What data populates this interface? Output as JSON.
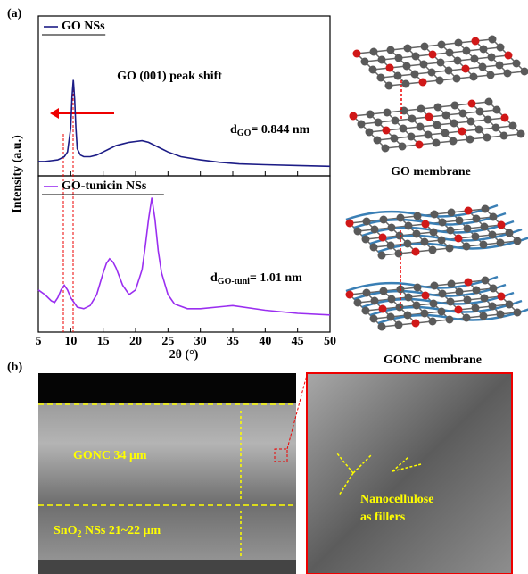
{
  "chart_data": [
    {
      "type": "line",
      "series": [
        {
          "name": "GO NSs",
          "color": "#1c1c86",
          "values": [
            9,
            9,
            9.5,
            10,
            12,
            15,
            30,
            50,
            60,
            48,
            30,
            17,
            13,
            12,
            12,
            13,
            15,
            17,
            19,
            20,
            21,
            21.5,
            22,
            21,
            19,
            17,
            15,
            12,
            10,
            8.5,
            7.5,
            7,
            6.5,
            6
          ]
        }
      ],
      "x": [
        5,
        6,
        7,
        8,
        9,
        9.5,
        10,
        10.2,
        10.4,
        10.6,
        10.8,
        11,
        11.5,
        12,
        13,
        14,
        15,
        16,
        17,
        18,
        19,
        20,
        21,
        22,
        23,
        24,
        25,
        27,
        30,
        33,
        36,
        40,
        45,
        50
      ],
      "xlim": [
        5,
        50
      ],
      "ylim": [
        0,
        100
      ],
      "ylabel": "Intensity (a.u.)",
      "annotation": "GO (001) peak shift",
      "d_label": {
        "main": "d",
        "sub": "GO",
        "rest": "= 0.844 nm"
      }
    },
    {
      "type": "line",
      "series": [
        {
          "name": "GO-tunicin NSs",
          "color": "#9a2ef0",
          "values": [
            27,
            24,
            20,
            19,
            22,
            27,
            30,
            27,
            22,
            16,
            15,
            17,
            24,
            38,
            44,
            47,
            45,
            41,
            30,
            24,
            27,
            40,
            55,
            72,
            86,
            72,
            52,
            38,
            24,
            18,
            15,
            15,
            17,
            14,
            12,
            11
          ]
        }
      ],
      "x": [
        5,
        6,
        7,
        7.5,
        8,
        8.5,
        9,
        9.5,
        10,
        11,
        12,
        13,
        14,
        15,
        15.5,
        16,
        16.5,
        17,
        18,
        19,
        20,
        21,
        21.5,
        22,
        22.5,
        23,
        23.5,
        24,
        25,
        26,
        28,
        30,
        35,
        40,
        45,
        50
      ],
      "xlim": [
        5,
        50
      ],
      "ylim": [
        0,
        100
      ],
      "xticks": [
        5,
        10,
        15,
        20,
        25,
        30,
        35,
        40,
        45,
        50
      ],
      "xlabel": "2θ (°)",
      "d_label": {
        "main": "d",
        "sub": "GO-tuni",
        "rest": "= 1.01 nm"
      }
    }
  ],
  "figure": {
    "panel_a": "(a)",
    "panel_b": "(b)",
    "go_caption": "GO membrane",
    "gonc_caption": "GONC membrane",
    "sem": {
      "gonc_layer": "GONC 34 μm",
      "sno2_layer": {
        "main": "SnO",
        "sub": "2",
        "rest": " NSs 21~22 μm"
      },
      "fillers": [
        "Nanocellulose",
        "as fillers"
      ]
    }
  }
}
